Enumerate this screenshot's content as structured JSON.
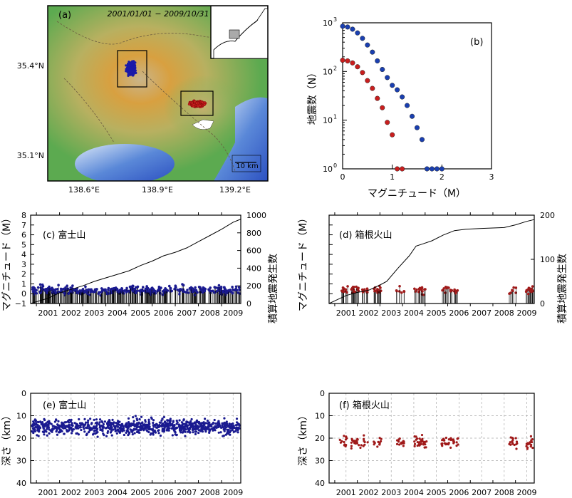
{
  "chart_data": [
    {
      "id": "a",
      "type": "map",
      "panel_label": "(a)",
      "date_range": "2001/01/01 − 2009/10/31",
      "x_ticks": [
        "138.6°E",
        "138.9°E",
        "139.2°E"
      ],
      "y_ticks": [
        "35.4°N",
        "35.1°N"
      ],
      "scale_label": "10 km",
      "colors": {
        "fuji": "#1a1aa8",
        "hakone": "#c81e1e"
      }
    },
    {
      "id": "b",
      "type": "scatter",
      "panel_label": "(b)",
      "xlabel": "マグニチュード（M）",
      "ylabel": "地震数（N）",
      "x_ticks": [
        "0",
        "1",
        "2",
        "3"
      ],
      "y_ticks": [
        "10",
        "10",
        "10",
        "10"
      ],
      "y_exp": [
        "0",
        "1",
        "2",
        "3"
      ],
      "xlim": [
        0,
        3
      ],
      "ylim": [
        1,
        1000
      ],
      "yscale": "log",
      "series": [
        {
          "color": "#1a3fb0",
          "x": [
            0.0,
            0.1,
            0.2,
            0.3,
            0.4,
            0.5,
            0.6,
            0.7,
            0.8,
            0.9,
            1.0,
            1.1,
            1.2,
            1.3,
            1.4,
            1.5,
            1.6,
            1.7,
            1.8,
            1.9,
            2.0
          ],
          "y": [
            850,
            820,
            740,
            620,
            480,
            350,
            250,
            165,
            110,
            75,
            52,
            42,
            30,
            20,
            12,
            7,
            4,
            1,
            1,
            1,
            1
          ]
        },
        {
          "color": "#c81e1e",
          "x": [
            0.0,
            0.1,
            0.2,
            0.3,
            0.4,
            0.5,
            0.6,
            0.7,
            0.8,
            0.9,
            1.0,
            1.1,
            1.2
          ],
          "y": [
            170,
            165,
            150,
            125,
            95,
            65,
            45,
            28,
            18,
            9,
            5,
            1,
            1
          ]
        }
      ]
    },
    {
      "id": "c",
      "type": "stem+line",
      "panel_label": "(c) 富士山",
      "ylabel": "マグニチュード（M）",
      "ylabel2": "積算地震発生数",
      "x_ticks": [
        "2001",
        "2002",
        "2003",
        "2004",
        "2005",
        "2006",
        "2007",
        "2008",
        "2009"
      ],
      "y_ticks": [
        "−1",
        "0",
        "1",
        "2",
        "3",
        "4",
        "5",
        "6",
        "7",
        "8"
      ],
      "y2_ticks": [
        "0",
        "200",
        "400",
        "600",
        "800",
        "1000"
      ],
      "xlim": [
        2000.75,
        2009.83
      ],
      "ylim": [
        -1,
        8
      ],
      "y2lim": [
        0,
        1000
      ],
      "marker_color": "#1a1a90",
      "cumulative": {
        "x": [
          2000.75,
          2001.5,
          2002.0,
          2002.5,
          2003.0,
          2003.5,
          2004.0,
          2004.5,
          2005.0,
          2005.5,
          2006.0,
          2006.5,
          2007.0,
          2007.5,
          2008.0,
          2008.5,
          2009.0,
          2009.5,
          2009.83
        ],
        "y": [
          0,
          60,
          120,
          160,
          200,
          250,
          290,
          330,
          370,
          430,
          480,
          540,
          580,
          630,
          700,
          770,
          840,
          920,
          955
        ]
      }
    },
    {
      "id": "d",
      "type": "stem+line",
      "panel_label": "(d) 箱根火山",
      "ylabel": "マグニチュード（M）",
      "ylabel2": "積算地震発生数",
      "x_ticks": [
        "2001",
        "2002",
        "2003",
        "2004",
        "2005",
        "2006",
        "2007",
        "2008",
        "2009"
      ],
      "y2_ticks": [
        "0",
        "100",
        "200"
      ],
      "xlim": [
        2000.75,
        2009.83
      ],
      "ylim": [
        -1,
        8
      ],
      "y2lim": [
        0,
        200
      ],
      "marker_color": "#a01a1a",
      "cumulative": {
        "x": [
          2000.75,
          2001.0,
          2001.5,
          2002.0,
          2002.5,
          2003.0,
          2003.3,
          2003.8,
          2004.3,
          2004.6,
          2004.9,
          2005.3,
          2005.8,
          2006.3,
          2006.8,
          2007.5,
          2008.5,
          2009.0,
          2009.5,
          2009.83
        ],
        "y": [
          0,
          6,
          18,
          25,
          30,
          42,
          50,
          80,
          108,
          130,
          135,
          142,
          155,
          165,
          168,
          170,
          172,
          178,
          186,
          190
        ]
      }
    },
    {
      "id": "e",
      "type": "scatter",
      "panel_label": "(e) 富士山",
      "ylabel": "深さ（km）",
      "x_ticks": [
        "2001",
        "2002",
        "2003",
        "2004",
        "2005",
        "2006",
        "2007",
        "2008",
        "2009"
      ],
      "y_ticks": [
        "0",
        "10",
        "20",
        "30",
        "40"
      ],
      "xlim": [
        2000.75,
        2009.83
      ],
      "ylim": [
        40,
        0
      ],
      "marker_color": "#1a1a90"
    },
    {
      "id": "f",
      "type": "scatter",
      "panel_label": "(f) 箱根火山",
      "ylabel": "深さ（km）",
      "x_ticks": [
        "2001",
        "2002",
        "2003",
        "2004",
        "2005",
        "2006",
        "2007",
        "2008",
        "2009"
      ],
      "y_ticks": [
        "0",
        "10",
        "20",
        "30",
        "40"
      ],
      "xlim": [
        2000.75,
        2009.83
      ],
      "ylim": [
        40,
        0
      ],
      "marker_color": "#a01a1a"
    }
  ]
}
